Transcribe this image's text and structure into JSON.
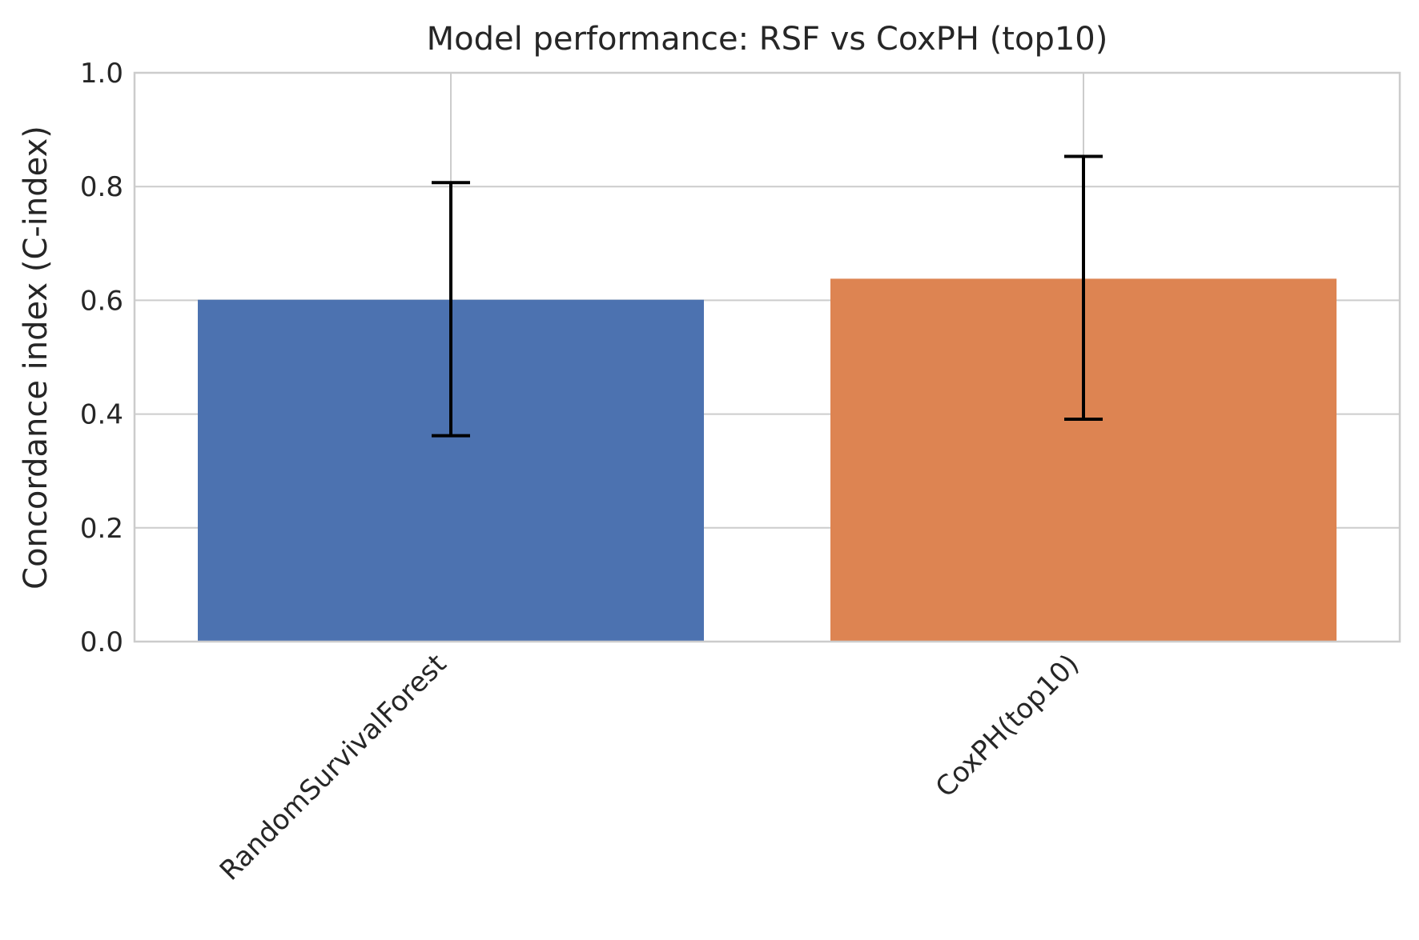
{
  "chart_data": {
    "type": "bar",
    "title": "Model performance: RSF vs CoxPH (top10)",
    "xlabel": "",
    "ylabel": "Concordance index (C-index)",
    "ylim": [
      0,
      1.0
    ],
    "yticks": [
      0.0,
      0.2,
      0.4,
      0.6,
      0.8,
      1.0
    ],
    "ytick_labels": [
      "0.0",
      "0.2",
      "0.4",
      "0.6",
      "0.8",
      "1.0"
    ],
    "categories": [
      "RandomSurvivalForest",
      "CoxPH(top10)"
    ],
    "values": [
      0.601,
      0.638
    ],
    "error": [
      0.222,
      0.231
    ],
    "error_low": [
      0.362,
      0.391
    ],
    "error_high": [
      0.807,
      0.853
    ],
    "bar_colors": [
      "#4c72b0",
      "#dd8452"
    ],
    "error_color": "#000000",
    "grid": true,
    "legend": "none"
  }
}
